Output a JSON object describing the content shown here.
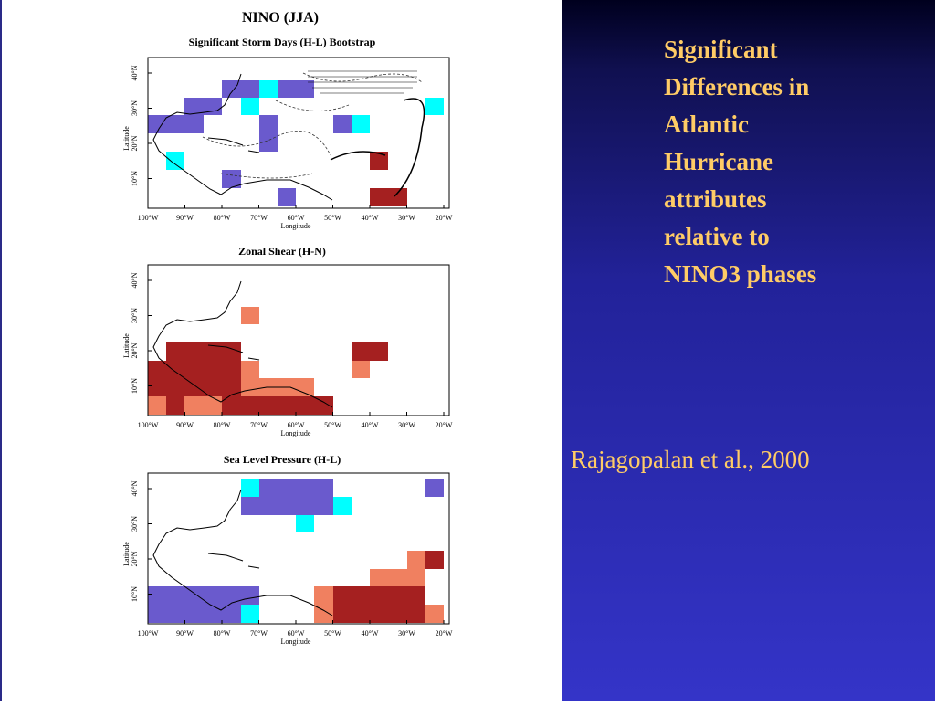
{
  "slide": {
    "heading_lines": [
      "Significant",
      "Differences in",
      "Atlantic",
      "Hurricane",
      "attributes",
      "relative to",
      "NINO3 phases"
    ],
    "citation": "Rajagopalan et al., 2000",
    "figure": {
      "main_title": "NINO (JJA)",
      "panel_titles": [
        "Significant Storm Days (H-L) Bootstrap",
        "Zonal Shear (H-N)",
        "Sea Level Pressure (H-L)"
      ],
      "x_ticks": [
        "100°W",
        "90°W",
        "80°W",
        "70°W",
        "60°W",
        "50°W",
        "40°W",
        "30°W",
        "20°W"
      ],
      "y_ticks": [
        "40°N",
        "30°N",
        "20°N",
        "10°N"
      ],
      "x_axis_label": "Longitude",
      "y_axis_label": "Latitude"
    }
  }
}
